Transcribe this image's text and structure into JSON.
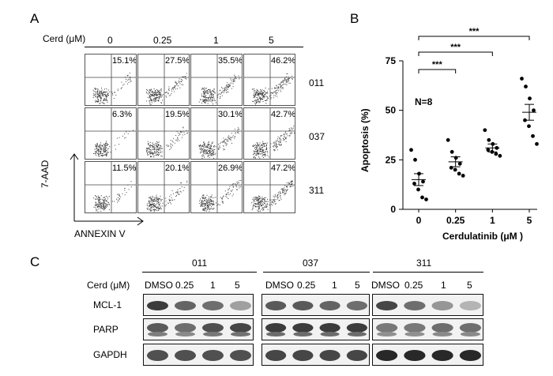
{
  "panels": {
    "a": "A",
    "b": "B",
    "c": "C"
  },
  "flow": {
    "cerd_label": "Cerd (μM)",
    "doses": [
      "0",
      "0.25",
      "1",
      "5"
    ],
    "samples": [
      {
        "id": "011",
        "pcts": [
          "15.1%",
          "27.5%",
          "35.5%",
          "46.2%"
        ]
      },
      {
        "id": "037",
        "pcts": [
          "6.3%",
          "19.5%",
          "30.1%",
          "42.7%"
        ]
      },
      {
        "id": "311",
        "pcts": [
          "11.5%",
          "20.1%",
          "26.9%",
          "47.2%"
        ]
      }
    ],
    "y_axis_label": "7-AAD",
    "x_axis_label": "ANNEXIN V"
  },
  "chart_data": {
    "type": "scatter",
    "xlabel": "Cerdulatinib (μM )",
    "ylabel": "Apoptosis (%)",
    "categories": [
      "0",
      "0.25",
      "1",
      "5"
    ],
    "ylim": [
      0,
      75
    ],
    "yticks": [
      0,
      25,
      50,
      75
    ],
    "annotation": "N=8",
    "significance": [
      "***",
      "***",
      "***"
    ],
    "means": [
      15,
      24,
      31,
      49
    ],
    "sem": [
      3,
      2.5,
      2,
      4
    ],
    "points": [
      [
        30,
        25,
        18,
        14,
        13,
        10,
        6,
        5
      ],
      [
        35,
        29,
        26,
        23,
        21,
        20,
        18,
        17
      ],
      [
        40,
        35,
        33,
        31,
        30,
        29,
        28,
        27
      ],
      [
        66,
        62,
        56,
        50,
        45,
        42,
        37,
        33
      ]
    ],
    "grid": false
  },
  "blots": {
    "cerd_label": "Cerd (μM)",
    "groups": [
      {
        "name": "011",
        "lanes": [
          "DMSO",
          "0.25",
          "1",
          "5"
        ]
      },
      {
        "name": "037",
        "lanes": [
          "DMSO",
          "0.25",
          "1",
          "5"
        ]
      },
      {
        "name": "311",
        "lanes": [
          "DMSO",
          "0.25",
          "1",
          "5"
        ]
      }
    ],
    "proteins": [
      "MCL-1",
      "PARP",
      "GAPDH"
    ]
  }
}
